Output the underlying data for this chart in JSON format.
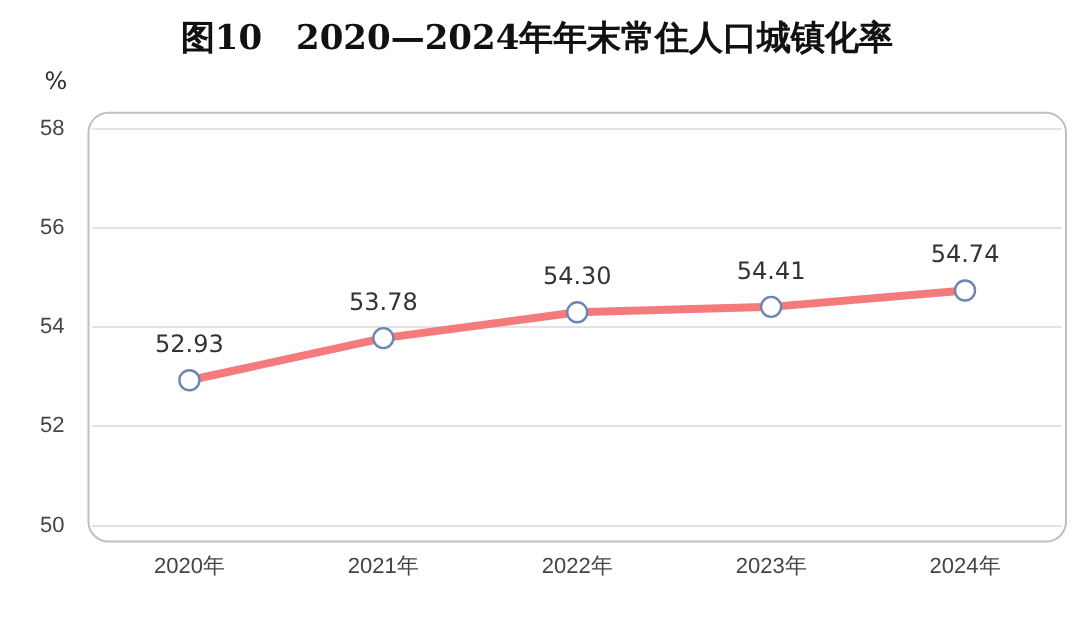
{
  "chart_data": {
    "type": "line",
    "title": "图10　2020—2024年年末常住人口城镇化率",
    "ylabel": "%",
    "categories": [
      "2020年",
      "2021年",
      "2022年",
      "2023年",
      "2024年"
    ],
    "series": [
      {
        "color": "#f47a7c",
        "values": [
          52.93,
          53.78,
          54.3,
          54.41,
          54.74
        ],
        "value_labels": [
          "52.93",
          "53.78",
          "54.30",
          "54.41",
          "54.74"
        ]
      }
    ],
    "ylim": [
      50,
      58
    ],
    "yticks": [
      50,
      52,
      54,
      56,
      58
    ],
    "grid": "y",
    "marker": "circle",
    "line_style": "solid",
    "legend": false
  }
}
